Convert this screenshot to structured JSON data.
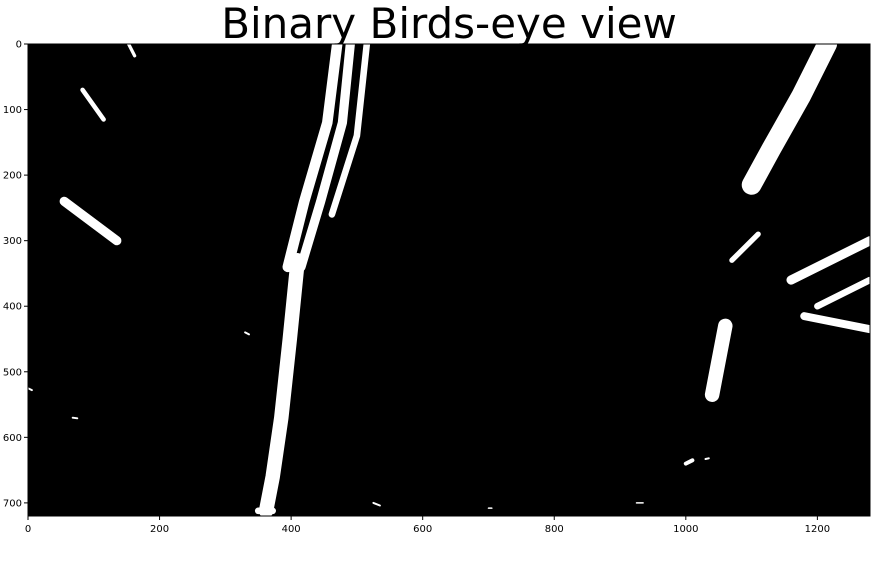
{
  "chart_data": {
    "type": "image",
    "title": "Binary Birds-eye view",
    "xlabel": "",
    "ylabel": "",
    "xlim": [
      0,
      1280
    ],
    "ylim": [
      720,
      0
    ],
    "x_ticks": [
      0,
      200,
      400,
      600,
      800,
      1000,
      1200
    ],
    "y_ticks": [
      0,
      100,
      200,
      300,
      400,
      500,
      600,
      700
    ],
    "grid": false,
    "colormap": "gray",
    "background_color": "#000000",
    "foreground_color": "#ffffff",
    "white_regions": [
      {
        "name": "left-lane-line-upper-strand-a",
        "points": [
          [
            470,
            0
          ],
          [
            455,
            120
          ],
          [
            420,
            240
          ],
          [
            395,
            340
          ]
        ],
        "width": 16
      },
      {
        "name": "left-lane-line-upper-strand-b",
        "points": [
          [
            490,
            0
          ],
          [
            478,
            120
          ],
          [
            445,
            240
          ],
          [
            415,
            340
          ]
        ],
        "width": 14
      },
      {
        "name": "left-lane-line-upper-strand-c",
        "points": [
          [
            515,
            0
          ],
          [
            500,
            140
          ],
          [
            462,
            260
          ]
        ],
        "width": 10
      },
      {
        "name": "left-lane-line-lower",
        "points": [
          [
            410,
            330
          ],
          [
            398,
            450
          ],
          [
            385,
            570
          ],
          [
            372,
            660
          ],
          [
            362,
            712
          ]
        ],
        "width": 22
      },
      {
        "name": "left-lane-line-base",
        "points": [
          [
            350,
            712
          ],
          [
            372,
            712
          ]
        ],
        "width": 10
      },
      {
        "name": "top-left-streak",
        "points": [
          [
            83,
            70
          ],
          [
            115,
            115
          ]
        ],
        "width": 7
      },
      {
        "name": "top-mark",
        "points": [
          [
            153,
            0
          ],
          [
            162,
            18
          ]
        ],
        "width": 5
      },
      {
        "name": "left-mid-streak",
        "points": [
          [
            55,
            240
          ],
          [
            135,
            300
          ]
        ],
        "width": 14
      },
      {
        "name": "right-upper-streak",
        "points": [
          [
            1215,
            0
          ],
          [
            1175,
            80
          ],
          [
            1130,
            160
          ],
          [
            1100,
            215
          ]
        ],
        "width": 30
      },
      {
        "name": "right-small-streak",
        "points": [
          [
            1070,
            330
          ],
          [
            1110,
            290
          ]
        ],
        "width": 8
      },
      {
        "name": "right-edge-clutter-a",
        "points": [
          [
            1160,
            360
          ],
          [
            1280,
            300
          ]
        ],
        "width": 14
      },
      {
        "name": "right-edge-clutter-b",
        "points": [
          [
            1200,
            400
          ],
          [
            1280,
            360
          ]
        ],
        "width": 10
      },
      {
        "name": "right-edge-clutter-c",
        "points": [
          [
            1180,
            415
          ],
          [
            1280,
            435
          ]
        ],
        "width": 12
      },
      {
        "name": "right-dashed-segment",
        "points": [
          [
            1060,
            430
          ],
          [
            1040,
            535
          ]
        ],
        "width": 22
      },
      {
        "name": "speck-small-left",
        "points": [
          [
            330,
            440
          ],
          [
            336,
            443
          ]
        ],
        "width": 3
      },
      {
        "name": "speck-left-edge",
        "points": [
          [
            0,
            525
          ],
          [
            6,
            528
          ]
        ],
        "width": 3
      },
      {
        "name": "speck-lower-left",
        "points": [
          [
            68,
            570
          ],
          [
            75,
            571
          ]
        ],
        "width": 3
      },
      {
        "name": "speck-right-bottom-a",
        "points": [
          [
            1000,
            640
          ],
          [
            1010,
            635
          ]
        ],
        "width": 6
      },
      {
        "name": "speck-right-bottom-b",
        "points": [
          [
            1030,
            633
          ],
          [
            1035,
            632
          ]
        ],
        "width": 3
      },
      {
        "name": "speck-bottom-mid-a",
        "points": [
          [
            525,
            700
          ],
          [
            535,
            704
          ]
        ],
        "width": 3
      },
      {
        "name": "speck-bottom-mid-b",
        "points": [
          [
            700,
            708
          ],
          [
            705,
            708
          ]
        ],
        "width": 2
      },
      {
        "name": "speck-bottom-mid-c",
        "points": [
          [
            925,
            700
          ],
          [
            935,
            700
          ]
        ],
        "width": 2
      }
    ]
  }
}
